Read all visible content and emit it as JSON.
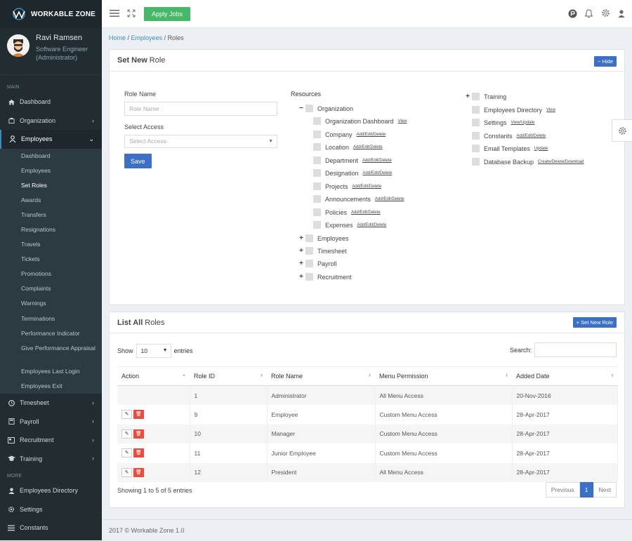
{
  "brand": {
    "logo_text": "WORKABLE ZONE"
  },
  "user": {
    "name": "Ravi Ramsen",
    "role_line1": "Software Engineer",
    "role_line2": "(Administrator)"
  },
  "sidebar": {
    "main_label": "MAIN",
    "items": [
      {
        "label": "Dashboard",
        "icon": "home-icon"
      },
      {
        "label": "Organization",
        "icon": "building-icon"
      },
      {
        "label": "Employees",
        "icon": "user-icon"
      }
    ],
    "employees_sub": [
      "Dashboard",
      "Employees",
      "Set Roles",
      "Awards",
      "Transfers",
      "Resignations",
      "Travels",
      "Tickets",
      "Promotions",
      "Complaints",
      "Warnings",
      "Terminations",
      "Performance Indicator",
      "Give Performance Appraisal",
      "Employees Last Login",
      "Employees Exit"
    ],
    "items2": [
      {
        "label": "Timesheet",
        "icon": "clock-icon"
      },
      {
        "label": "Payroll",
        "icon": "calculator-icon"
      },
      {
        "label": "Recruitment",
        "icon": "newspaper-icon"
      },
      {
        "label": "Training",
        "icon": "graduation-cap-icon"
      }
    ],
    "more_label": "MORE",
    "more_items": [
      {
        "label": "Employees Directory",
        "icon": "user-icon"
      },
      {
        "label": "Settings",
        "icon": "gear-icon"
      },
      {
        "label": "Constants",
        "icon": "list-icon"
      }
    ]
  },
  "topbar": {
    "apply_label": "Apply Jobs"
  },
  "breadcrumb": {
    "home": "Home",
    "employees": "Employees",
    "current": "Roles"
  },
  "set_role": {
    "title_bold": "Set New",
    "title_rest": "Role",
    "hide_label": "Hide",
    "role_name_label": "Role Name",
    "role_name_placeholder": "Role Name",
    "select_access_label": "Select Access",
    "select_access_value": "Select Access",
    "save_label": "Save",
    "resources_label": "Resources",
    "org": {
      "label": "Organization",
      "children": [
        {
          "label": "Organization Dashboard",
          "perm": "View"
        },
        {
          "label": "Company",
          "perm": "Add/Edit/Delete"
        },
        {
          "label": "Location",
          "perm": "Add/Edit/Delete"
        },
        {
          "label": "Department",
          "perm": "Add/Edit/Delete"
        },
        {
          "label": "Designation",
          "perm": "Add/Edit/Delete"
        },
        {
          "label": "Projects",
          "perm": "Add/Edit/Delete"
        },
        {
          "label": "Announcements",
          "perm": "Add/Edit/Delete"
        },
        {
          "label": "Policies",
          "perm": "Add/Edit/Delete"
        },
        {
          "label": "Expenses",
          "perm": "Add/Edit/Delete"
        }
      ]
    },
    "collapsed": [
      "Employees",
      "Timesheet",
      "Payroll",
      "Recruitment"
    ],
    "right": [
      {
        "label": "Training",
        "perm": ""
      },
      {
        "label": "Employees Directory",
        "perm": "View"
      },
      {
        "label": "Settings",
        "perm": "View/Update"
      },
      {
        "label": "Constants",
        "perm": "Add/Edit/Delete"
      },
      {
        "label": "Email Templates",
        "perm": "Update"
      },
      {
        "label": "Database Backup",
        "perm": "Create/Delete/Download"
      }
    ]
  },
  "list": {
    "title_bold": "List All",
    "title_rest": "Roles",
    "new_label": "Set New Role",
    "show_label": "Show",
    "entries_value": "10",
    "entries_label": "entries",
    "search_label": "Search:",
    "columns": [
      "Action",
      "Role ID",
      "Role Name",
      "Menu Permission",
      "Added Date"
    ],
    "rows": [
      {
        "id": "1",
        "name": "Administrator",
        "perm": "All Menu Access",
        "date": "20-Nov-2016",
        "actions": false
      },
      {
        "id": "9",
        "name": "Employee",
        "perm": "Custom Menu Access",
        "date": "28-Apr-2017",
        "actions": true
      },
      {
        "id": "10",
        "name": "Manager",
        "perm": "Custom Menu Access",
        "date": "28-Apr-2017",
        "actions": true
      },
      {
        "id": "11",
        "name": "Junior Employee",
        "perm": "Custom Menu Access",
        "date": "28-Apr-2017",
        "actions": true
      },
      {
        "id": "12",
        "name": "President",
        "perm": "All Menu Access",
        "date": "28-Apr-2017",
        "actions": true
      }
    ],
    "info": "Showing 1 to 5 of 5 entries",
    "pager": {
      "prev": "Previous",
      "page": "1",
      "next": "Next"
    }
  },
  "footer": "2017 © Workable Zone 1.0"
}
